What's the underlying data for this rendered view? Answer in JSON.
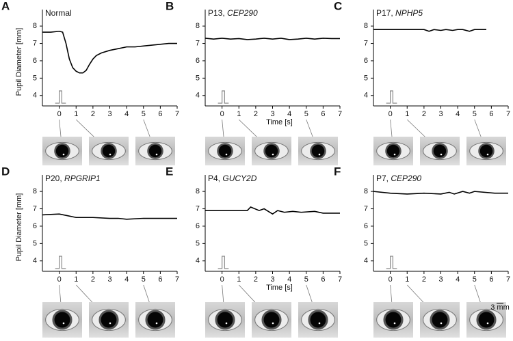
{
  "chart_data": [
    {
      "type": "line",
      "letter": "A",
      "title": "Normal",
      "ylabel": "Pupil Diameter [mm]",
      "xlim": [
        -1,
        7
      ],
      "ylim": [
        3.4,
        8.95
      ],
      "xticks": [
        0,
        1,
        2,
        3,
        4,
        5,
        6,
        7
      ],
      "yticks": [
        4,
        5,
        6,
        7,
        8
      ],
      "stimulus": [
        0,
        0.15
      ],
      "series": [
        {
          "color": "#000000",
          "x": [
            -1,
            -0.5,
            0,
            0.2,
            0.4,
            0.6,
            0.8,
            1.0,
            1.2,
            1.4,
            1.6,
            1.8,
            2.0,
            2.2,
            2.5,
            3,
            3.5,
            4,
            4.5,
            5,
            5.5,
            6,
            6.5,
            7
          ],
          "values": [
            7.65,
            7.65,
            7.7,
            7.65,
            7.0,
            6.1,
            5.6,
            5.4,
            5.3,
            5.3,
            5.45,
            5.8,
            6.1,
            6.3,
            6.45,
            6.6,
            6.7,
            6.8,
            6.8,
            6.85,
            6.9,
            6.95,
            7.0,
            7.0
          ]
        }
      ]
    },
    {
      "type": "line",
      "letter": "B",
      "title": "P13,",
      "title_italic": "CEP290",
      "xlabel": "Time [s]",
      "xlim": [
        -1,
        7
      ],
      "ylim": [
        3.4,
        8.95
      ],
      "xticks": [
        0,
        1,
        2,
        3,
        4,
        5,
        6,
        7
      ],
      "yticks": [
        4,
        5,
        6,
        7,
        8
      ],
      "stimulus": [
        0,
        0.15
      ],
      "series": [
        {
          "color": "#000000",
          "x": [
            -1,
            -0.5,
            0,
            0.5,
            1,
            1.5,
            2,
            2.5,
            3,
            3.5,
            4,
            4.5,
            5,
            5.5,
            6,
            6.5,
            7
          ],
          "values": [
            7.3,
            7.25,
            7.3,
            7.25,
            7.28,
            7.22,
            7.25,
            7.3,
            7.25,
            7.3,
            7.22,
            7.25,
            7.3,
            7.25,
            7.3,
            7.28,
            7.28
          ]
        }
      ]
    },
    {
      "type": "line",
      "letter": "C",
      "title": "P17,",
      "title_italic": "NPHP5",
      "xlim": [
        -1,
        7
      ],
      "ylim": [
        3.4,
        8.95
      ],
      "xticks": [
        0,
        1,
        2,
        3,
        4,
        5,
        6,
        7
      ],
      "yticks": [
        4,
        5,
        6,
        7,
        8
      ],
      "stimulus": [
        0,
        0.15
      ],
      "series": [
        {
          "color": "#000000",
          "x": [
            -1,
            0,
            1,
            2,
            2.3,
            2.6,
            3,
            3.3,
            3.7,
            4,
            4.3,
            4.7,
            5,
            5.7
          ],
          "values": [
            7.8,
            7.8,
            7.8,
            7.8,
            7.7,
            7.8,
            7.75,
            7.8,
            7.75,
            7.8,
            7.8,
            7.7,
            7.8,
            7.8
          ]
        }
      ]
    },
    {
      "type": "line",
      "letter": "D",
      "title": "P20,",
      "title_italic": "RPGRIP1",
      "ylabel": "Pupil Diameter [mm]",
      "xlim": [
        -1,
        7
      ],
      "ylim": [
        3.4,
        8.95
      ],
      "xticks": [
        0,
        1,
        2,
        3,
        4,
        5,
        6,
        7
      ],
      "yticks": [
        4,
        5,
        6,
        7,
        8
      ],
      "stimulus": [
        0,
        0.15
      ],
      "series": [
        {
          "color": "#000000",
          "x": [
            -1,
            0,
            0.5,
            1,
            2,
            3,
            3.5,
            4,
            5,
            6,
            7
          ],
          "values": [
            6.65,
            6.7,
            6.6,
            6.5,
            6.5,
            6.45,
            6.45,
            6.4,
            6.45,
            6.45,
            6.45
          ]
        }
      ]
    },
    {
      "type": "line",
      "letter": "E",
      "title": "P4,",
      "title_italic": "GUCY2D",
      "xlabel": "Time [s]",
      "xlim": [
        -1,
        7
      ],
      "ylim": [
        3.4,
        8.95
      ],
      "xticks": [
        0,
        1,
        2,
        3,
        4,
        5,
        6,
        7
      ],
      "yticks": [
        4,
        5,
        6,
        7,
        8
      ],
      "stimulus": [
        0,
        0.15
      ],
      "series": [
        {
          "color": "#000000",
          "x": [
            -1,
            0,
            1,
            1.5,
            1.7,
            2.2,
            2.5,
            3,
            3.3,
            3.7,
            4.2,
            4.7,
            5.5,
            6,
            7
          ],
          "values": [
            6.9,
            6.9,
            6.9,
            6.9,
            7.1,
            6.9,
            7.0,
            6.7,
            6.9,
            6.8,
            6.85,
            6.8,
            6.85,
            6.75,
            6.75
          ]
        }
      ]
    },
    {
      "type": "line",
      "letter": "F",
      "title": "P7,",
      "title_italic": "CEP290",
      "annotation": "3 mm",
      "xlim": [
        -1,
        7
      ],
      "ylim": [
        3.4,
        8.95
      ],
      "xticks": [
        0,
        1,
        2,
        3,
        4,
        5,
        6,
        7
      ],
      "yticks": [
        4,
        5,
        6,
        7,
        8
      ],
      "stimulus": [
        0,
        0.15
      ],
      "series": [
        {
          "color": "#000000",
          "x": [
            -1,
            0,
            1,
            2,
            3,
            3.5,
            3.8,
            4.3,
            4.7,
            5,
            6.2,
            7
          ],
          "values": [
            8.0,
            7.9,
            7.85,
            7.9,
            7.85,
            7.95,
            7.85,
            8.0,
            7.9,
            8.0,
            7.9,
            7.9
          ]
        }
      ]
    }
  ]
}
